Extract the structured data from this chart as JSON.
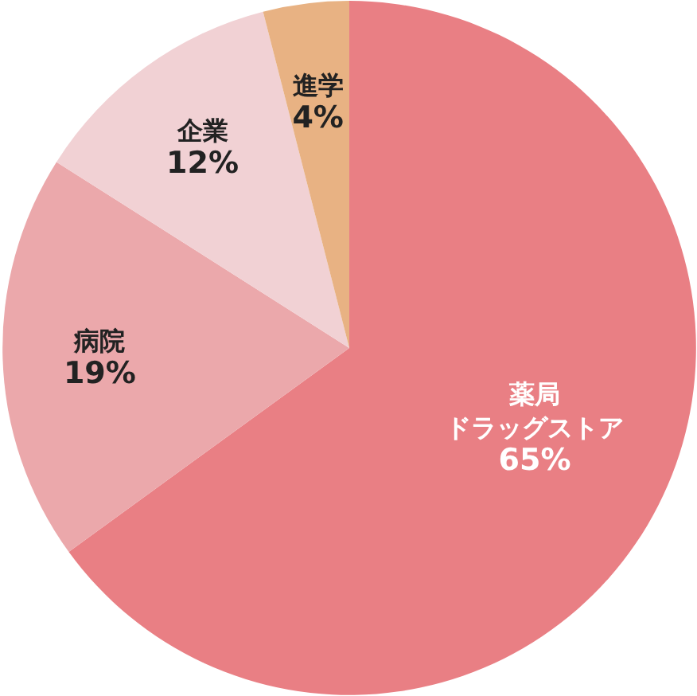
{
  "chart_data": {
    "type": "pie",
    "categories": [
      "薬局ドラッグストア",
      "病院",
      "企業",
      "進学"
    ],
    "values": [
      65,
      19,
      12,
      4
    ],
    "colors": [
      "#e97f84",
      "#eba8ab",
      "#f1d1d4",
      "#e8b283"
    ],
    "value_labels": [
      "65%",
      "19%",
      "12%",
      "4%"
    ]
  }
}
